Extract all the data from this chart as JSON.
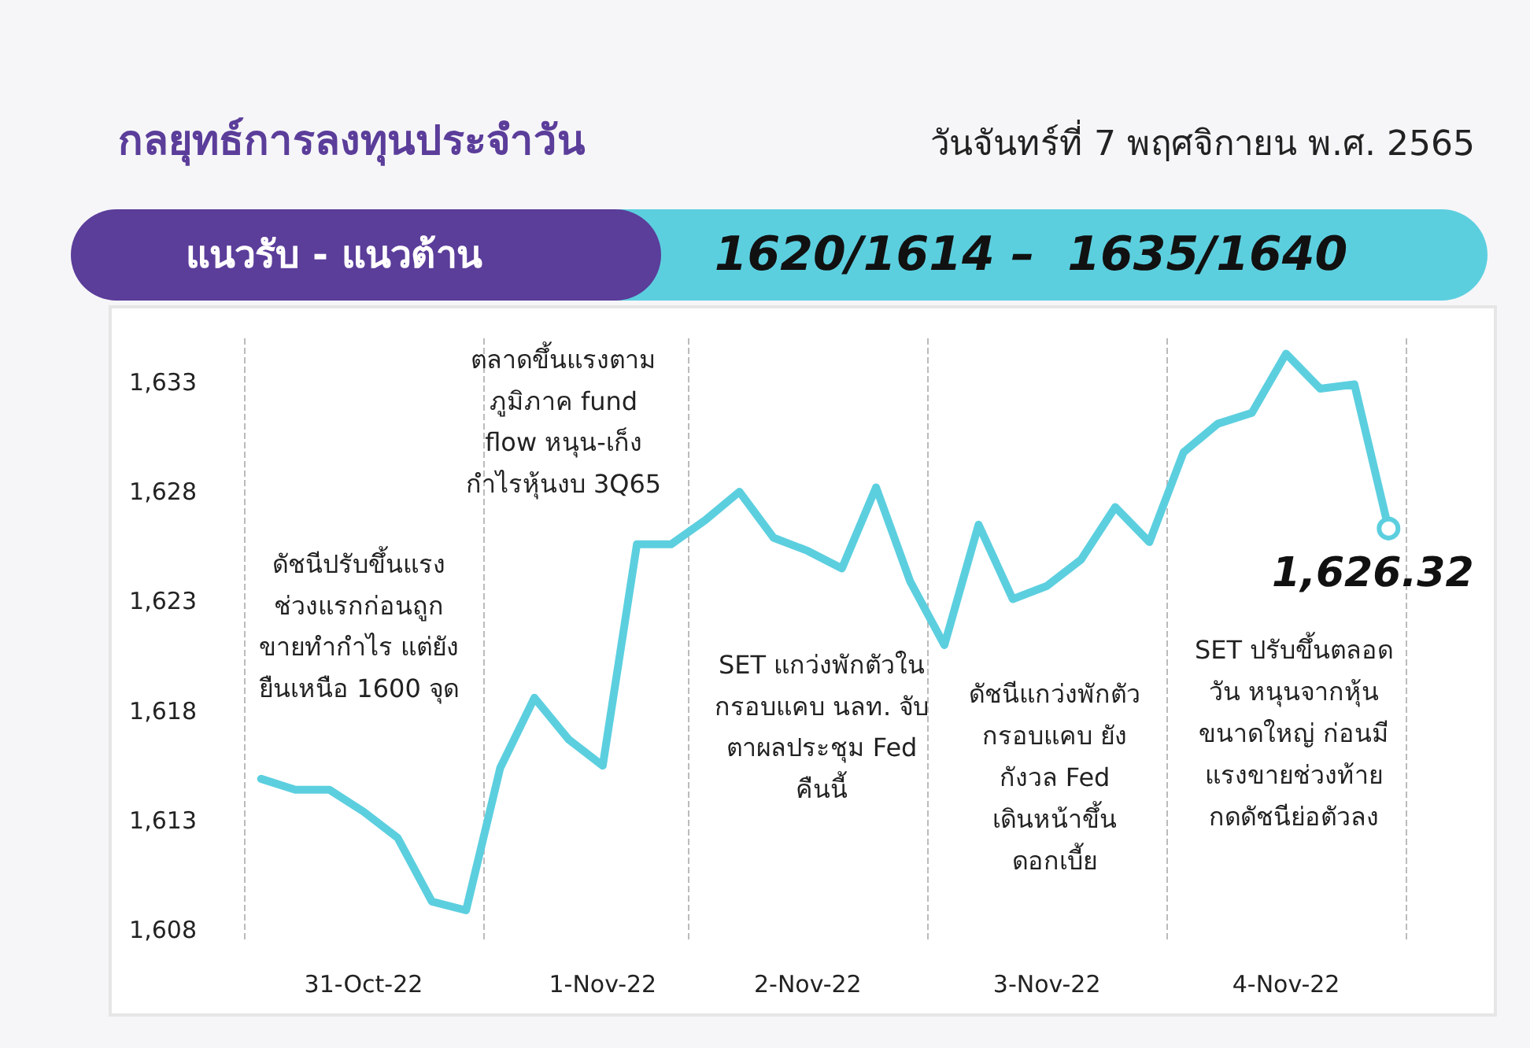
{
  "chart_data": {
    "type": "line",
    "title": "กลยุทธ์การลงทุนประจำวัน",
    "subtitle": "วันจันทร์ที่ 7 พฤศจิกายน พ.ศ. 2565",
    "annotations": [
      "แนวรับ - แนวต้าน",
      "1620/1614 –  1635/1640",
      "ดัชนีปรับขึ้นแรง\nช่วงแรกก่อนถูก\nขายทำกำไร แต่ยัง\nยืนเหนือ 1600 จุด",
      "ตลาดขึ้นแรงตาม\nภูมิภาค fund\nflow หนุน-เก็ง\nกำไรหุ้นงบ 3Q65",
      "SET แกว่งพักตัวใน\nกรอบแคบ นลท. จับ\nตาผลประชุม Fed\nคืนนี้",
      "ดัชนีแกว่งพักตัว\nกรอบแคบ ยัง\nกังวล Fed\nเดินหน้าขึ้น\nดอกเบี้ย",
      "SET ปรับขึ้นตลอด\nวัน หนุนจากหุ้น\nขนาดใหญ่ ก่อนมี\nแรงขายช่วงท้าย\nกดดัชนีย่อตัวลง"
    ],
    "categories": [
      null,
      null,
      null,
      "31-Oct-22",
      null,
      null,
      null,
      null,
      null,
      null,
      "1-Nov-22",
      null,
      null,
      null,
      null,
      null,
      "2-Nov-22",
      null,
      null,
      null,
      null,
      null,
      null,
      "3-Nov-22",
      null,
      null,
      null,
      null,
      null,
      null,
      "4-Nov-22",
      null,
      null,
      null
    ],
    "series": [
      {
        "color": "#5ccfdf",
        "values": [
          1614.9,
          1614.4,
          1614.4,
          1613.4,
          1612.2,
          1609.3,
          1608.9,
          1615.4,
          1618.6,
          1616.7,
          1615.5,
          1625.6,
          1625.6,
          1626.7,
          1628.0,
          1625.9,
          1625.3,
          1624.5,
          1628.2,
          1623.9,
          1621.0,
          1626.5,
          1623.1,
          1623.7,
          1624.9,
          1627.3,
          1625.7,
          1629.8,
          1631.1,
          1631.6,
          1634.3,
          1632.7,
          1632.9,
          1626.32
        ],
        "value_labels": [
          null,
          null,
          null,
          null,
          null,
          null,
          null,
          null,
          null,
          null,
          null,
          null,
          null,
          null,
          null,
          null,
          null,
          null,
          null,
          null,
          null,
          null,
          null,
          null,
          null,
          null,
          null,
          null,
          null,
          null,
          null,
          null,
          null,
          "1,626.32"
        ]
      }
    ],
    "ylim": [
      1607.5,
      1635
    ],
    "yticks": [
      {
        "value": 1608,
        "label": "1,608"
      },
      {
        "value": 1613,
        "label": "1,613"
      },
      {
        "value": 1618,
        "label": "1,618"
      },
      {
        "value": 1623,
        "label": "1,623"
      },
      {
        "value": 1628,
        "label": "1,628"
      },
      {
        "value": 1633,
        "label": "1,633"
      }
    ],
    "grid": "x",
    "marker": "none",
    "line_style": "solid"
  }
}
